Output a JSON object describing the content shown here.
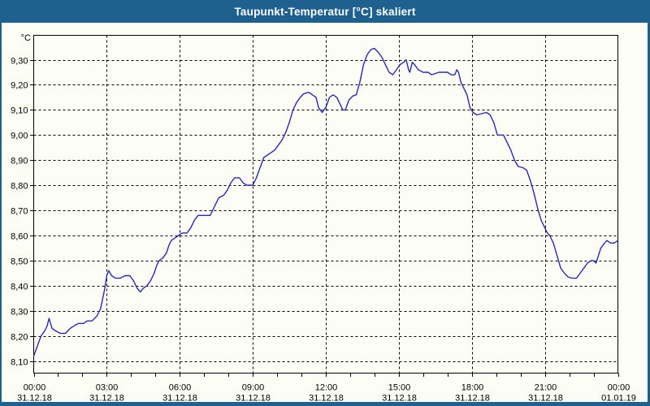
{
  "window": {
    "title": "Taupunkt-Temperatur [°C] skaliert"
  },
  "colors": {
    "titlebar_bg": "#1e618f",
    "titlebar_text": "#ffffff",
    "window_bg": "#fcfdf5",
    "grid": "#000000",
    "series_line": "#2a2ab0"
  },
  "chart_data": {
    "type": "line",
    "title": "Taupunkt-Temperatur [°C] skaliert",
    "unit": "°C",
    "xlabel": "",
    "ylabel": "°C",
    "xlim": [
      0,
      24
    ],
    "ylim": [
      8.052,
      9.397
    ],
    "x_major_step_hours": 3,
    "x_minor_step_hours": 1,
    "y_step": 0.1,
    "grid": "dashed",
    "legend": "none",
    "y_ticks": [
      {
        "v": 9.3,
        "label": "9,30"
      },
      {
        "v": 9.2,
        "label": "9,20"
      },
      {
        "v": 9.1,
        "label": "9,10"
      },
      {
        "v": 9.0,
        "label": "9,00"
      },
      {
        "v": 8.9,
        "label": "8,90"
      },
      {
        "v": 8.8,
        "label": "8,80"
      },
      {
        "v": 8.7,
        "label": "8,70"
      },
      {
        "v": 8.6,
        "label": "8,60"
      },
      {
        "v": 8.5,
        "label": "8,50"
      },
      {
        "v": 8.4,
        "label": "8,40"
      },
      {
        "v": 8.3,
        "label": "8,30"
      },
      {
        "v": 8.2,
        "label": "8,20"
      },
      {
        "v": 8.1,
        "label": "8,10"
      }
    ],
    "x_ticks": [
      {
        "t": 0,
        "time": "00:00",
        "date": "31.12.18"
      },
      {
        "t": 3,
        "time": "03:00",
        "date": "31.12.18"
      },
      {
        "t": 6,
        "time": "06:00",
        "date": "31.12.18"
      },
      {
        "t": 9,
        "time": "09:00",
        "date": "31.12.18"
      },
      {
        "t": 12,
        "time": "12:00",
        "date": "31.12.18"
      },
      {
        "t": 15,
        "time": "15:00",
        "date": "31.12.18"
      },
      {
        "t": 18,
        "time": "18:00",
        "date": "31.12.18"
      },
      {
        "t": 21,
        "time": "21:00",
        "date": "31.12.18"
      },
      {
        "t": 24,
        "time": "00:00",
        "date": "01.01.19"
      }
    ],
    "series": [
      {
        "name": "Taupunkt-Temperatur [°C] skaliert",
        "color": "#2a2ab0",
        "points": [
          [
            0,
            8.12
          ],
          [
            0.15,
            8.16
          ],
          [
            0.3,
            8.2
          ],
          [
            0.45,
            8.22
          ],
          [
            0.55,
            8.24
          ],
          [
            0.63,
            8.27
          ],
          [
            0.75,
            8.23
          ],
          [
            0.9,
            8.22
          ],
          [
            1.1,
            8.21
          ],
          [
            1.3,
            8.21
          ],
          [
            1.5,
            8.23
          ],
          [
            1.65,
            8.24
          ],
          [
            1.85,
            8.25
          ],
          [
            2.05,
            8.25
          ],
          [
            2.2,
            8.26
          ],
          [
            2.4,
            8.26
          ],
          [
            2.6,
            8.28
          ],
          [
            2.75,
            8.31
          ],
          [
            2.9,
            8.38
          ],
          [
            3.0,
            8.44
          ],
          [
            3.08,
            8.46
          ],
          [
            3.2,
            8.44
          ],
          [
            3.35,
            8.43
          ],
          [
            3.55,
            8.43
          ],
          [
            3.75,
            8.44
          ],
          [
            3.95,
            8.44
          ],
          [
            4.1,
            8.42
          ],
          [
            4.25,
            8.39
          ],
          [
            4.38,
            8.375
          ],
          [
            4.5,
            8.39
          ],
          [
            4.65,
            8.4
          ],
          [
            4.8,
            8.42
          ],
          [
            4.95,
            8.45
          ],
          [
            5.05,
            8.48
          ],
          [
            5.15,
            8.5
          ],
          [
            5.3,
            8.51
          ],
          [
            5.45,
            8.53
          ],
          [
            5.55,
            8.56
          ],
          [
            5.65,
            8.58
          ],
          [
            5.8,
            8.59
          ],
          [
            5.95,
            8.6
          ],
          [
            6.1,
            8.61
          ],
          [
            6.3,
            8.61
          ],
          [
            6.45,
            8.63
          ],
          [
            6.6,
            8.66
          ],
          [
            6.75,
            8.68
          ],
          [
            7.0,
            8.68
          ],
          [
            7.25,
            8.68
          ],
          [
            7.45,
            8.72
          ],
          [
            7.6,
            8.75
          ],
          [
            7.8,
            8.76
          ],
          [
            7.95,
            8.78
          ],
          [
            8.1,
            8.81
          ],
          [
            8.25,
            8.83
          ],
          [
            8.45,
            8.83
          ],
          [
            8.6,
            8.81
          ],
          [
            8.75,
            8.8
          ],
          [
            9.0,
            8.8
          ],
          [
            9.15,
            8.83
          ],
          [
            9.3,
            8.87
          ],
          [
            9.45,
            8.91
          ],
          [
            9.6,
            8.92
          ],
          [
            9.75,
            8.93
          ],
          [
            9.9,
            8.94
          ],
          [
            10.05,
            8.96
          ],
          [
            10.2,
            8.98
          ],
          [
            10.35,
            9.01
          ],
          [
            10.5,
            9.05
          ],
          [
            10.65,
            9.1
          ],
          [
            10.8,
            9.13
          ],
          [
            10.95,
            9.15
          ],
          [
            11.1,
            9.165
          ],
          [
            11.3,
            9.17
          ],
          [
            11.45,
            9.16
          ],
          [
            11.6,
            9.15
          ],
          [
            11.7,
            9.11
          ],
          [
            11.85,
            9.09
          ],
          [
            12.0,
            9.11
          ],
          [
            12.15,
            9.15
          ],
          [
            12.3,
            9.16
          ],
          [
            12.45,
            9.15
          ],
          [
            12.6,
            9.12
          ],
          [
            12.7,
            9.1
          ],
          [
            12.8,
            9.1
          ],
          [
            12.95,
            9.14
          ],
          [
            13.1,
            9.155
          ],
          [
            13.25,
            9.16
          ],
          [
            13.4,
            9.21
          ],
          [
            13.55,
            9.28
          ],
          [
            13.7,
            9.32
          ],
          [
            13.85,
            9.34
          ],
          [
            14.0,
            9.345
          ],
          [
            14.15,
            9.33
          ],
          [
            14.3,
            9.31
          ],
          [
            14.45,
            9.28
          ],
          [
            14.6,
            9.25
          ],
          [
            14.75,
            9.24
          ],
          [
            14.9,
            9.26
          ],
          [
            15.05,
            9.28
          ],
          [
            15.2,
            9.29
          ],
          [
            15.3,
            9.3
          ],
          [
            15.4,
            9.26
          ],
          [
            15.45,
            9.25
          ],
          [
            15.55,
            9.29
          ],
          [
            15.65,
            9.28
          ],
          [
            15.8,
            9.26
          ],
          [
            16.0,
            9.25
          ],
          [
            16.2,
            9.25
          ],
          [
            16.35,
            9.24
          ],
          [
            16.5,
            9.245
          ],
          [
            16.65,
            9.25
          ],
          [
            16.85,
            9.25
          ],
          [
            17.0,
            9.25
          ],
          [
            17.15,
            9.24
          ],
          [
            17.3,
            9.24
          ],
          [
            17.38,
            9.26
          ],
          [
            17.45,
            9.25
          ],
          [
            17.55,
            9.21
          ],
          [
            17.7,
            9.18
          ],
          [
            17.8,
            9.16
          ],
          [
            17.92,
            9.11
          ],
          [
            18.05,
            9.09
          ],
          [
            18.2,
            9.08
          ],
          [
            18.4,
            9.085
          ],
          [
            18.6,
            9.09
          ],
          [
            18.75,
            9.08
          ],
          [
            18.9,
            9.05
          ],
          [
            19.05,
            9.0
          ],
          [
            19.3,
            9.0
          ],
          [
            19.45,
            8.97
          ],
          [
            19.6,
            8.94
          ],
          [
            19.75,
            8.9
          ],
          [
            19.9,
            8.875
          ],
          [
            20.1,
            8.87
          ],
          [
            20.25,
            8.86
          ],
          [
            20.4,
            8.82
          ],
          [
            20.55,
            8.77
          ],
          [
            20.7,
            8.71
          ],
          [
            20.85,
            8.66
          ],
          [
            21.0,
            8.63
          ],
          [
            21.1,
            8.61
          ],
          [
            21.2,
            8.6
          ],
          [
            21.35,
            8.57
          ],
          [
            21.5,
            8.52
          ],
          [
            21.65,
            8.47
          ],
          [
            21.8,
            8.45
          ],
          [
            21.95,
            8.435
          ],
          [
            22.1,
            8.43
          ],
          [
            22.3,
            8.43
          ],
          [
            22.45,
            8.45
          ],
          [
            22.6,
            8.47
          ],
          [
            22.75,
            8.49
          ],
          [
            22.9,
            8.5
          ],
          [
            23.0,
            8.5
          ],
          [
            23.1,
            8.49
          ],
          [
            23.2,
            8.52
          ],
          [
            23.3,
            8.55
          ],
          [
            23.45,
            8.57
          ],
          [
            23.55,
            8.58
          ],
          [
            23.7,
            8.57
          ],
          [
            23.85,
            8.57
          ],
          [
            24.0,
            8.58
          ]
        ]
      }
    ]
  }
}
